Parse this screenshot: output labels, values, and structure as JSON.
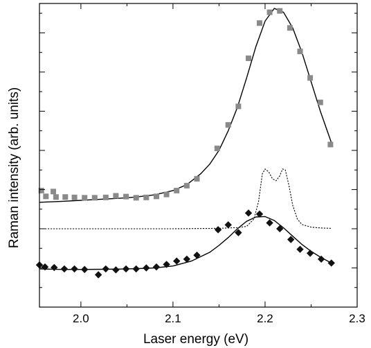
{
  "chart_data": {
    "type": "scatter",
    "xlabel": "Laser energy (eV)",
    "ylabel": "Raman intensity (arb. units)",
    "xlim": [
      1.955,
      2.3
    ],
    "ylim": [
      -4.0,
      11.5
    ],
    "y_ticks_labeled": false,
    "x_ticks": [
      "2.0",
      "2.1",
      "2.2",
      "2.3"
    ],
    "grid": false,
    "legend": "none",
    "series": [
      {
        "marker": "square",
        "color": "#8a8a8a",
        "points": [
          [
            1.957,
            1.95
          ],
          [
            1.962,
            1.65
          ],
          [
            1.97,
            1.9
          ],
          [
            1.973,
            1.62
          ],
          [
            1.983,
            1.62
          ],
          [
            1.993,
            1.6
          ],
          [
            2.004,
            1.58
          ],
          [
            2.015,
            1.58
          ],
          [
            2.027,
            1.6
          ],
          [
            2.038,
            1.68
          ],
          [
            2.049,
            1.64
          ],
          [
            2.06,
            1.58
          ],
          [
            2.071,
            1.6
          ],
          [
            2.082,
            1.65
          ],
          [
            2.093,
            1.75
          ],
          [
            2.104,
            1.95
          ],
          [
            2.115,
            2.2
          ],
          [
            2.126,
            2.55
          ],
          [
            2.148,
            4.1
          ],
          [
            2.16,
            5.3
          ],
          [
            2.171,
            6.25
          ],
          [
            2.182,
            8.7
          ],
          [
            2.194,
            10.5
          ],
          [
            2.205,
            11.05
          ],
          [
            2.216,
            11.12
          ],
          [
            2.227,
            10.25
          ],
          [
            2.238,
            9.05
          ],
          [
            2.249,
            7.7
          ],
          [
            2.26,
            6.45
          ],
          [
            2.271,
            4.3
          ]
        ]
      },
      {
        "marker": "diamond",
        "color": "#111111",
        "points": [
          [
            1.955,
            -1.85
          ],
          [
            1.961,
            -1.95
          ],
          [
            1.971,
            -1.98
          ],
          [
            1.982,
            -2.05
          ],
          [
            1.993,
            -2.05
          ],
          [
            2.004,
            -2.08
          ],
          [
            2.019,
            -2.35
          ],
          [
            2.027,
            -2.05
          ],
          [
            2.038,
            -2.1
          ],
          [
            2.049,
            -2.05
          ],
          [
            2.06,
            -2.05
          ],
          [
            2.071,
            -2.0
          ],
          [
            2.082,
            -1.95
          ],
          [
            2.093,
            -1.82
          ],
          [
            2.104,
            -1.65
          ],
          [
            2.115,
            -1.55
          ],
          [
            2.126,
            -1.35
          ],
          [
            2.149,
            -0.05
          ],
          [
            2.16,
            0.2
          ],
          [
            2.171,
            -0.2
          ],
          [
            2.182,
            0.8
          ],
          [
            2.194,
            0.75
          ],
          [
            2.205,
            0.3
          ],
          [
            2.216,
            0.0
          ],
          [
            2.228,
            -0.55
          ],
          [
            2.238,
            -1.05
          ],
          [
            2.249,
            -1.25
          ],
          [
            2.261,
            -1.55
          ],
          [
            2.272,
            -1.75
          ]
        ]
      }
    ],
    "curves": [
      {
        "style": "solid",
        "x": [
          1.955,
          1.98,
          2.0,
          2.02,
          2.04,
          2.06,
          2.08,
          2.1,
          2.115,
          2.13,
          2.14,
          2.15,
          2.16,
          2.17,
          2.18,
          2.19,
          2.2,
          2.21,
          2.22,
          2.23,
          2.24,
          2.25,
          2.26,
          2.272
        ],
        "y": [
          1.35,
          1.4,
          1.45,
          1.5,
          1.55,
          1.62,
          1.73,
          1.95,
          2.25,
          2.8,
          3.3,
          4.0,
          5.0,
          6.2,
          7.7,
          9.3,
          10.6,
          11.25,
          11.05,
          10.25,
          9.0,
          7.5,
          6.0,
          4.4
        ]
      },
      {
        "style": "dotted",
        "x": [
          1.955,
          2.1,
          2.15,
          2.17,
          2.18,
          2.188,
          2.193,
          2.197,
          2.2,
          2.204,
          2.208,
          2.212,
          2.216,
          2.219,
          2.222,
          2.226,
          2.23,
          2.235,
          2.24,
          2.25,
          2.26,
          2.272
        ],
        "y": [
          0.0,
          0.0,
          0.02,
          0.06,
          0.12,
          0.5,
          1.4,
          2.8,
          3.05,
          2.9,
          2.55,
          2.45,
          2.7,
          3.05,
          3.0,
          2.2,
          1.2,
          0.5,
          0.22,
          0.08,
          0.04,
          0.02
        ]
      },
      {
        "style": "solid",
        "x": [
          1.955,
          1.98,
          2.0,
          2.02,
          2.04,
          2.06,
          2.08,
          2.1,
          2.12,
          2.14,
          2.15,
          2.16,
          2.17,
          2.18,
          2.19,
          2.2,
          2.21,
          2.22,
          2.23,
          2.24,
          2.25,
          2.26,
          2.272
        ],
        "y": [
          -2.05,
          -2.08,
          -2.08,
          -2.07,
          -2.06,
          -2.04,
          -2.0,
          -1.9,
          -1.65,
          -1.2,
          -0.85,
          -0.45,
          0.0,
          0.38,
          0.6,
          0.62,
          0.42,
          0.05,
          -0.38,
          -0.8,
          -1.15,
          -1.45,
          -1.75
        ]
      }
    ]
  }
}
